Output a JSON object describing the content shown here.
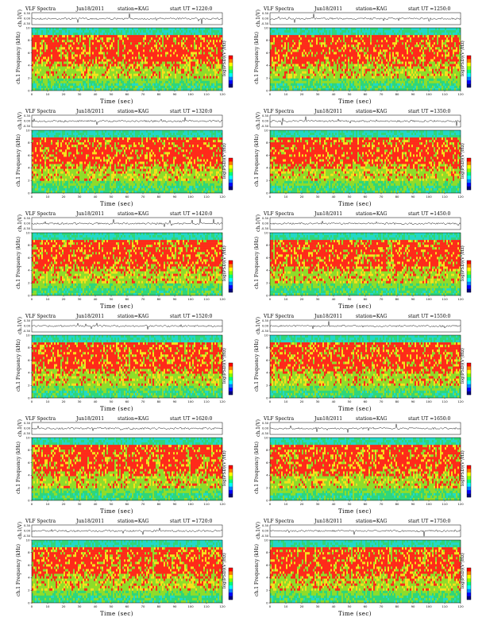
{
  "panels": [
    {
      "title": "VLF Spectra",
      "date": "Jun18/2011",
      "station": "station=KAG",
      "start": "start  UT =1220:0"
    },
    {
      "title": "VLF Spectra",
      "date": "Jun18/2011",
      "station": "station=KAG",
      "start": "start  UT =1250:0"
    },
    {
      "title": "VLF Spectra",
      "date": "Jun18/2011",
      "station": "station=KAG",
      "start": "start  UT =1320:0"
    },
    {
      "title": "VLF Spectra",
      "date": "Jun18/2011",
      "station": "station=KAG",
      "start": "start  UT =1350:0"
    },
    {
      "title": "VLF Spectra",
      "date": "Jun18/2011",
      "station": "station=KAG",
      "start": "start  UT =1420:0"
    },
    {
      "title": "VLF Spectra",
      "date": "Jun18/2011",
      "station": "station=KAG",
      "start": "start  UT =1450:0"
    },
    {
      "title": "VLF Spectra",
      "date": "Jun18/2011",
      "station": "station=KAG",
      "start": "start  UT =1520:0"
    },
    {
      "title": "VLF Spectra",
      "date": "Jun18/2011",
      "station": "station=KAG",
      "start": "start  UT =1550:0"
    },
    {
      "title": "VLF Spectra",
      "date": "Jun18/2011",
      "station": "station=KAG",
      "start": "start  UT =1620:0"
    },
    {
      "title": "VLF Spectra",
      "date": "Jun18/2011",
      "station": "station=KAG",
      "start": "start  UT =1650:0"
    },
    {
      "title": "VLF Spectra",
      "date": "Jun18/2011",
      "station": "station=KAG",
      "start": "start  UT =1720:0"
    },
    {
      "title": "VLF Spectra",
      "date": "Jun18/2011",
      "station": "station=KAG",
      "start": "start  UT =1750:0"
    }
  ],
  "labels": {
    "waveform_ylabel": "ch.1(V)",
    "spectrogram_ylabel": "ch.1  Frequency  (kHz)",
    "xlabel": "Time  (sec)",
    "colorbar_label": "log(PSD)(V²/Hz)"
  },
  "colors": {
    "high": "#ff2a1a",
    "mid_high": "#f6e11c",
    "mid": "#8fdc2a",
    "low": "#2fd67a",
    "floor": "#22d8c8",
    "colorbar": [
      "#ff0000",
      "#ff8000",
      "#ffff00",
      "#80ff00",
      "#00ff80",
      "#00ffff",
      "#0080ff",
      "#0000ff",
      "#000080"
    ]
  },
  "chart_data": {
    "type": "heatmap",
    "count": 12,
    "x_axis": {
      "label": "Time  (sec)",
      "range": [
        0,
        120
      ],
      "ticks": [
        0,
        10,
        20,
        30,
        40,
        50,
        60,
        70,
        80,
        90,
        100,
        110,
        120
      ]
    },
    "y_axis": {
      "label": "ch.1  Frequency  (kHz)",
      "range": [
        0,
        10
      ],
      "ticks": [
        0,
        2,
        4,
        6,
        8,
        10
      ]
    },
    "waveform_axis": {
      "label": "ch.1(V)",
      "ticks": [
        "0.30",
        "0.00",
        "-0.30"
      ]
    },
    "colorbar": {
      "label": "log(PSD)(V²/Hz)"
    }
  }
}
